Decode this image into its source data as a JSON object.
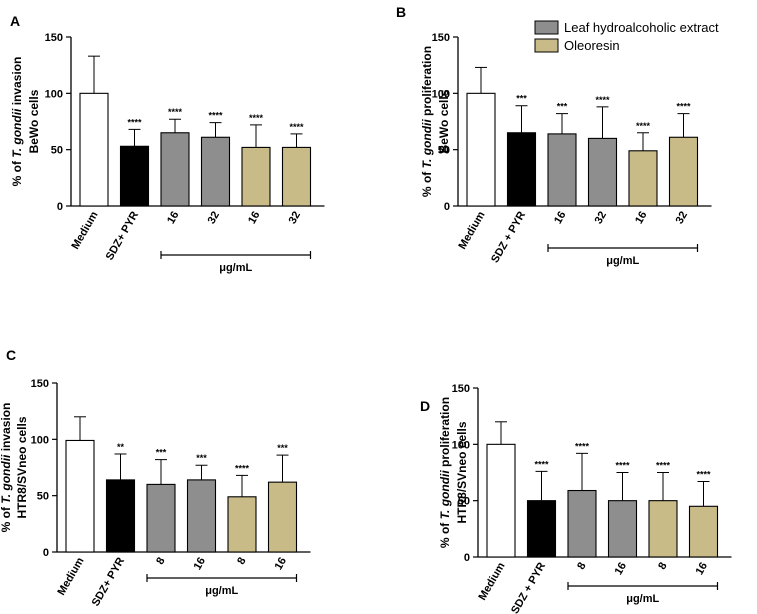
{
  "colors": {
    "Medium": "#ffffff",
    "SDZ+PYR": "#000000",
    "Leaf hydroalcoholic extract": "#8e8e8e",
    "Oleoresin": "#c8bb88"
  },
  "legend": {
    "entries": [
      {
        "label": "Leaf hydroalcoholic extract",
        "group": "Leaf hydroalcoholic extract"
      },
      {
        "label": "Oleoresin",
        "group": "Oleoresin"
      }
    ]
  },
  "chart_data": [
    {
      "type": "bar",
      "panel": "A",
      "ylabel_lines": [
        "% of T. gondii invasion",
        "BeWo cells"
      ],
      "ylim": [
        0,
        150
      ],
      "yticks": [
        "0",
        "50",
        "100",
        "150"
      ],
      "categories": [
        "Medium",
        "SDZ+ PYR",
        "16",
        "32",
        "16",
        "32"
      ],
      "groups": [
        "Medium",
        "SDZ+PYR",
        "Leaf hydroalcoholic extract",
        "Leaf hydroalcoholic extract",
        "Oleoresin",
        "Oleoresin"
      ],
      "values": [
        100,
        53,
        65,
        61,
        52,
        52
      ],
      "errors": [
        33,
        15,
        12,
        13,
        20,
        12
      ],
      "significance": [
        "",
        "****",
        "****",
        "****",
        "****",
        "****"
      ],
      "concentration_label": "μg/mL"
    },
    {
      "type": "bar",
      "panel": "B",
      "ylabel_lines": [
        "% of T. gondii proliferation",
        "BeWo cells"
      ],
      "ylim": [
        0,
        150
      ],
      "yticks": [
        "0",
        "50",
        "100",
        "150"
      ],
      "categories": [
        "Medium",
        "SDZ + PYR",
        "16",
        "32",
        "16",
        "32"
      ],
      "groups": [
        "Medium",
        "SDZ+PYR",
        "Leaf hydroalcoholic extract",
        "Leaf hydroalcoholic extract",
        "Oleoresin",
        "Oleoresin"
      ],
      "values": [
        100,
        65,
        64,
        60,
        49,
        61
      ],
      "errors": [
        23,
        24,
        18,
        28,
        16,
        21
      ],
      "significance": [
        "",
        "***",
        "***",
        "****",
        "****",
        "****"
      ],
      "concentration_label": "μg/mL"
    },
    {
      "type": "bar",
      "panel": "C",
      "ylabel_lines": [
        "% of T. gondii invasion",
        "HTR8/SVneo cells"
      ],
      "ylim": [
        0,
        150
      ],
      "yticks": [
        "0",
        "50",
        "100",
        "150"
      ],
      "categories": [
        "Medium",
        "SDZ+ PYR",
        "8",
        "16",
        "8",
        "16"
      ],
      "groups": [
        "Medium",
        "SDZ+PYR",
        "Leaf hydroalcoholic extract",
        "Leaf hydroalcoholic extract",
        "Oleoresin",
        "Oleoresin"
      ],
      "values": [
        99,
        64,
        60,
        64,
        49,
        62
      ],
      "errors": [
        21,
        23,
        22,
        13,
        19,
        24
      ],
      "significance": [
        "",
        "**",
        "***",
        "***",
        "****",
        "***"
      ],
      "concentration_label": "μg/mL"
    },
    {
      "type": "bar",
      "panel": "D",
      "ylabel_lines": [
        "% of T. gondii proliferation",
        "HTR8/SVneo cells"
      ],
      "ylim": [
        0,
        150
      ],
      "yticks": [
        "0",
        "50",
        "100",
        "150"
      ],
      "categories": [
        "Medium",
        "SDZ + PYR",
        "8",
        "16",
        "8",
        "16"
      ],
      "groups": [
        "Medium",
        "SDZ+PYR",
        "Leaf hydroalcoholic extract",
        "Leaf hydroalcoholic extract",
        "Oleoresin",
        "Oleoresin"
      ],
      "values": [
        100,
        50,
        59,
        50,
        50,
        45
      ],
      "errors": [
        20,
        26,
        33,
        25,
        25,
        22
      ],
      "significance": [
        "",
        "****",
        "****",
        "****",
        "****",
        "****"
      ],
      "concentration_label": "μg/mL"
    }
  ]
}
